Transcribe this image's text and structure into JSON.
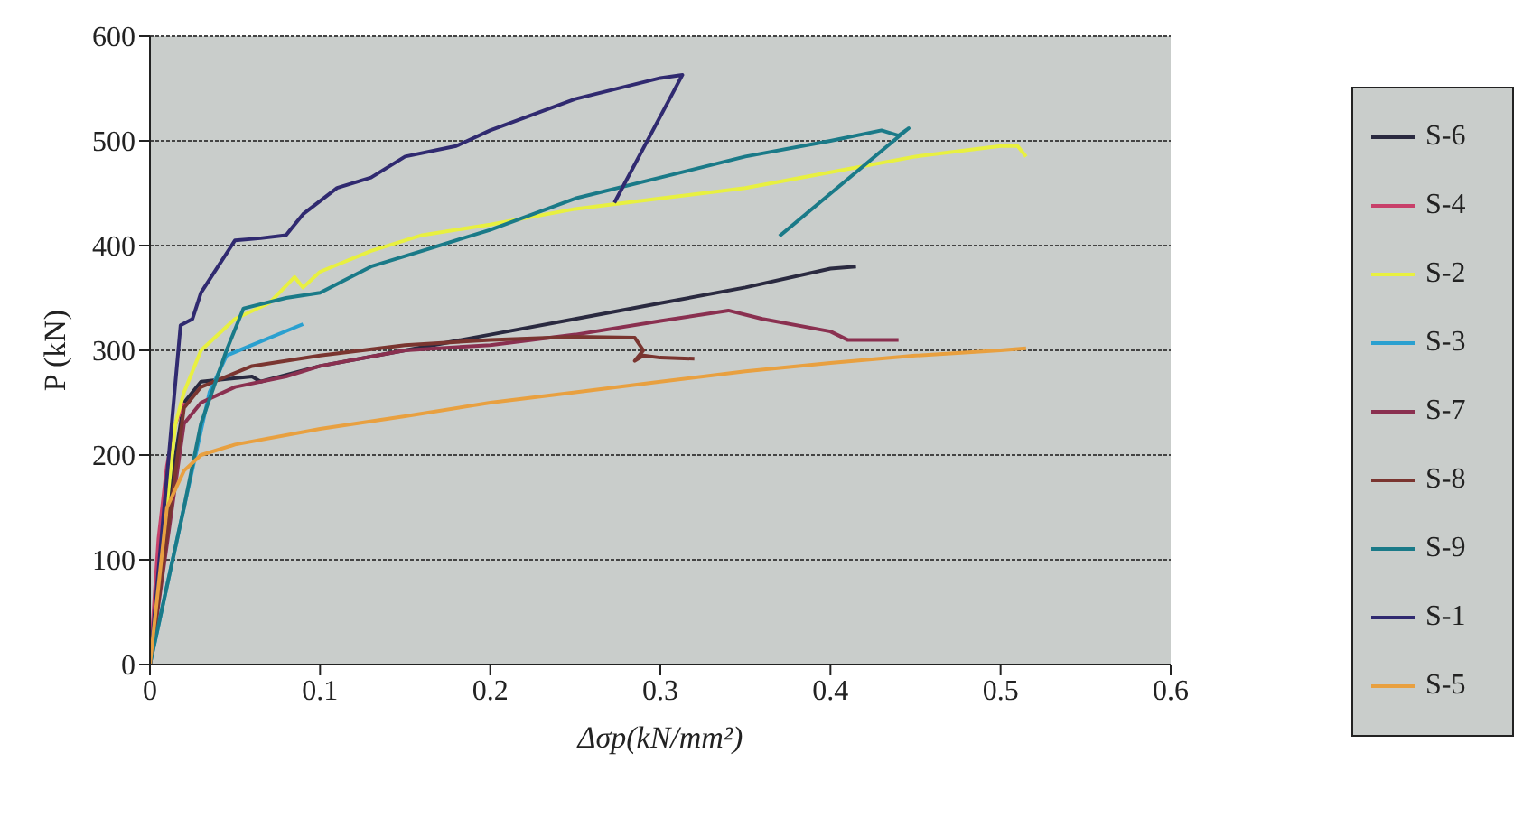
{
  "chart_data": {
    "type": "line",
    "xlabel": "Δσp(kN/mm²)",
    "ylabel": "P (kN)",
    "xlim": [
      0,
      0.6
    ],
    "xticks": [
      0,
      0.1,
      0.2,
      0.3,
      0.4,
      0.5,
      0.6
    ],
    "ylim": [
      0,
      600
    ],
    "yticks": [
      0,
      100,
      200,
      300,
      400,
      500,
      600
    ],
    "grid": "y",
    "legend": "right",
    "marker": "none",
    "line_style": "solid",
    "series": [
      {
        "name": "S-6",
        "color": "#2a2a40",
        "x": [
          0,
          0.015,
          0.02,
          0.03,
          0.06,
          0.065,
          0.1,
          0.15,
          0.2,
          0.25,
          0.3,
          0.35,
          0.4,
          0.415
        ],
        "values": [
          0,
          200,
          250,
          270,
          275,
          270,
          285,
          300,
          315,
          330,
          345,
          360,
          378,
          380
        ]
      },
      {
        "name": "S-4",
        "color": "#c8406a",
        "x": [
          0,
          0.005,
          0.01,
          0.015,
          0.02
        ],
        "values": [
          0,
          120,
          190,
          230,
          250
        ]
      },
      {
        "name": "S-2",
        "color": "#e8f040",
        "x": [
          0,
          0.015,
          0.02,
          0.03,
          0.05,
          0.07,
          0.085,
          0.09,
          0.1,
          0.13,
          0.16,
          0.2,
          0.25,
          0.3,
          0.35,
          0.4,
          0.45,
          0.5,
          0.51,
          0.515
        ],
        "values": [
          0,
          230,
          260,
          300,
          330,
          345,
          370,
          360,
          375,
          395,
          410,
          420,
          435,
          445,
          455,
          470,
          485,
          495,
          495,
          485
        ]
      },
      {
        "name": "S-3",
        "color": "#2aa0d0",
        "x": [
          0,
          0.02,
          0.035,
          0.045,
          0.06,
          0.09
        ],
        "values": [
          0,
          150,
          260,
          295,
          305,
          325
        ]
      },
      {
        "name": "S-7",
        "color": "#8a3050",
        "x": [
          0,
          0.02,
          0.03,
          0.05,
          0.08,
          0.1,
          0.15,
          0.2,
          0.25,
          0.3,
          0.34,
          0.36,
          0.4,
          0.41,
          0.44
        ],
        "values": [
          0,
          230,
          250,
          265,
          275,
          285,
          300,
          305,
          315,
          328,
          338,
          330,
          318,
          310,
          310
        ]
      },
      {
        "name": "S-8",
        "color": "#7a3530",
        "x": [
          0,
          0.02,
          0.03,
          0.06,
          0.1,
          0.15,
          0.2,
          0.25,
          0.285,
          0.29,
          0.285,
          0.29,
          0.3,
          0.32
        ],
        "values": [
          0,
          245,
          265,
          285,
          295,
          305,
          310,
          313,
          312,
          300,
          290,
          295,
          293,
          292
        ]
      },
      {
        "name": "S-9",
        "color": "#1a7a88",
        "x": [
          0,
          0.02,
          0.03,
          0.045,
          0.055,
          0.08,
          0.1,
          0.13,
          0.16,
          0.2,
          0.25,
          0.3,
          0.35,
          0.4,
          0.43,
          0.44,
          0.446,
          0.37
        ],
        "values": [
          0,
          150,
          230,
          300,
          340,
          350,
          355,
          380,
          395,
          415,
          445,
          465,
          485,
          500,
          510,
          505,
          512,
          409
        ]
      },
      {
        "name": "S-1",
        "color": "#302a70",
        "x": [
          0,
          0.018,
          0.025,
          0.03,
          0.04,
          0.05,
          0.065,
          0.08,
          0.09,
          0.11,
          0.13,
          0.15,
          0.18,
          0.2,
          0.25,
          0.3,
          0.313,
          0.273
        ],
        "values": [
          0,
          324,
          330,
          355,
          380,
          405,
          407,
          410,
          430,
          455,
          465,
          485,
          495,
          510,
          540,
          560,
          563,
          441
        ]
      },
      {
        "name": "S-5",
        "color": "#e8a040",
        "x": [
          0,
          0.01,
          0.02,
          0.03,
          0.05,
          0.1,
          0.15,
          0.2,
          0.25,
          0.3,
          0.35,
          0.4,
          0.45,
          0.5,
          0.515
        ],
        "values": [
          0,
          150,
          185,
          200,
          210,
          225,
          237,
          250,
          260,
          270,
          280,
          288,
          295,
          300,
          302
        ]
      }
    ]
  }
}
